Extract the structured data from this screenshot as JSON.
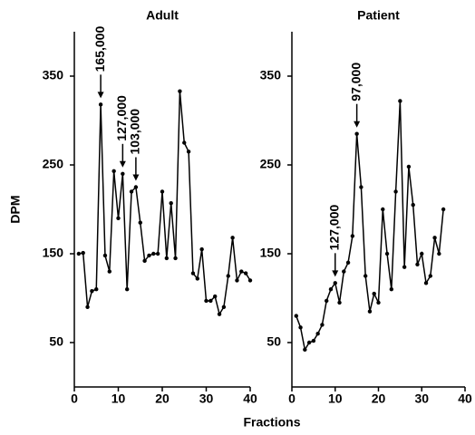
{
  "xlabel": "Fractions",
  "chart_data": [
    {
      "type": "line",
      "title": "Adult",
      "ylabel": "DPM",
      "color": "#000000",
      "x": [
        1,
        2,
        3,
        4,
        5,
        6,
        7,
        8,
        9,
        10,
        11,
        12,
        13,
        14,
        15,
        16,
        17,
        18,
        19,
        20,
        21,
        22,
        23,
        24,
        25,
        26,
        27,
        28,
        29,
        30,
        31,
        32,
        33,
        34,
        35,
        36,
        37,
        38,
        39,
        40
      ],
      "values": [
        150,
        151,
        90,
        108,
        110,
        318,
        148,
        130,
        243,
        190,
        240,
        110,
        220,
        225,
        185,
        142,
        148,
        150,
        150,
        220,
        145,
        207,
        145,
        333,
        275,
        265,
        128,
        122,
        155,
        97,
        97,
        102,
        82,
        90,
        125,
        168,
        120,
        130,
        128,
        120
      ],
      "xlim": [
        0,
        40
      ],
      "xticks": [
        0,
        10,
        20,
        30,
        40
      ],
      "ylim": [
        0,
        400
      ],
      "yticks": [
        50,
        150,
        250,
        350
      ],
      "annotations": [
        {
          "label": "165,000",
          "x": 6
        },
        {
          "label": "127,000",
          "x": 11
        },
        {
          "label": "103,000",
          "x": 14
        }
      ]
    },
    {
      "type": "line",
      "title": "Patient",
      "color": "#000000",
      "x": [
        1,
        2,
        3,
        4,
        5,
        6,
        7,
        8,
        9,
        10,
        11,
        12,
        13,
        14,
        15,
        16,
        17,
        18,
        19,
        20,
        21,
        22,
        23,
        24,
        25,
        26,
        27,
        28,
        29,
        30,
        31,
        32,
        33,
        34,
        35
      ],
      "values": [
        80,
        67,
        42,
        50,
        52,
        60,
        70,
        97,
        110,
        117,
        95,
        130,
        140,
        170,
        285,
        225,
        125,
        85,
        105,
        95,
        200,
        150,
        110,
        220,
        322,
        135,
        248,
        205,
        138,
        150,
        117,
        125,
        168,
        150,
        200
      ],
      "xlim": [
        0,
        40
      ],
      "xticks": [
        0,
        10,
        20,
        30,
        40
      ],
      "ylim": [
        0,
        400
      ],
      "yticks": [
        50,
        150,
        250,
        350
      ],
      "annotations": [
        {
          "label": "127,000",
          "x": 10
        },
        {
          "label": "97,000",
          "x": 15
        }
      ]
    }
  ]
}
